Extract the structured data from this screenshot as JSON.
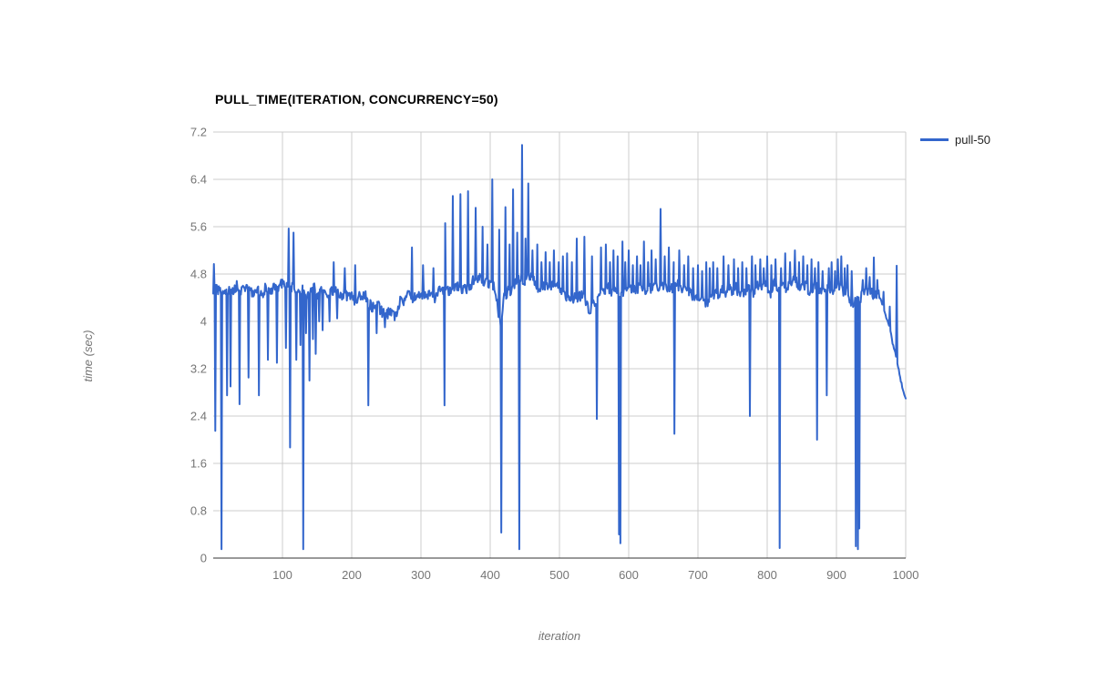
{
  "page": {
    "background": "#FFFFFF"
  },
  "chart_data": {
    "type": "line",
    "title": "PULL_TIME(ITERATION, CONCURRENCY=50)",
    "xlabel": "iteration",
    "ylabel": "time (sec)",
    "xlim": [
      0,
      1000
    ],
    "ylim": [
      0,
      7.2
    ],
    "x_ticks": [
      100,
      200,
      300,
      400,
      500,
      600,
      700,
      800,
      900,
      1000
    ],
    "y_ticks": [
      0,
      0.8,
      1.6,
      2.4,
      3.2,
      4,
      4.8,
      5.6,
      6.4,
      7.2
    ],
    "grid": true,
    "legend_position": "right",
    "colors": {
      "line": "#3366CC",
      "grid": "#CCCCCC",
      "axis": "#333333",
      "tick_text": "#757575",
      "title_text": "#000000",
      "legend_text": "#222222"
    },
    "series": [
      {
        "name": "pull-50",
        "color": "#3366CC",
        "baseline_anchors": [
          [
            0,
            4.55
          ],
          [
            5,
            4.55
          ],
          [
            15,
            4.55
          ],
          [
            30,
            4.52
          ],
          [
            45,
            4.55
          ],
          [
            60,
            4.5
          ],
          [
            75,
            4.55
          ],
          [
            90,
            4.6
          ],
          [
            105,
            4.6
          ],
          [
            118,
            4.55
          ],
          [
            135,
            4.5
          ],
          [
            150,
            4.52
          ],
          [
            165,
            4.45
          ],
          [
            180,
            4.42
          ],
          [
            195,
            4.45
          ],
          [
            210,
            4.4
          ],
          [
            222,
            4.4
          ],
          [
            232,
            4.28
          ],
          [
            242,
            4.2
          ],
          [
            252,
            4.12
          ],
          [
            262,
            4.05
          ],
          [
            270,
            4.3
          ],
          [
            280,
            4.4
          ],
          [
            290,
            4.45
          ],
          [
            300,
            4.5
          ],
          [
            310,
            4.45
          ],
          [
            320,
            4.42
          ],
          [
            330,
            4.55
          ],
          [
            342,
            4.6
          ],
          [
            355,
            4.65
          ],
          [
            365,
            4.6
          ],
          [
            375,
            4.68
          ],
          [
            385,
            4.7
          ],
          [
            395,
            4.62
          ],
          [
            405,
            4.65
          ],
          [
            410,
            4.35
          ],
          [
            415,
            3.95
          ],
          [
            420,
            4.35
          ],
          [
            428,
            4.55
          ],
          [
            438,
            4.65
          ],
          [
            448,
            4.72
          ],
          [
            456,
            4.75
          ],
          [
            464,
            4.7
          ],
          [
            472,
            4.6
          ],
          [
            482,
            4.55
          ],
          [
            492,
            4.6
          ],
          [
            502,
            4.5
          ],
          [
            512,
            4.45
          ],
          [
            522,
            4.42
          ],
          [
            532,
            4.4
          ],
          [
            542,
            4.3
          ],
          [
            550,
            4.25
          ],
          [
            558,
            4.35
          ],
          [
            566,
            4.5
          ],
          [
            576,
            4.55
          ],
          [
            586,
            4.45
          ],
          [
            596,
            4.5
          ],
          [
            606,
            4.55
          ],
          [
            616,
            4.5
          ],
          [
            626,
            4.55
          ],
          [
            636,
            4.6
          ],
          [
            646,
            4.55
          ],
          [
            656,
            4.5
          ],
          [
            666,
            4.55
          ],
          [
            676,
            4.6
          ],
          [
            686,
            4.55
          ],
          [
            696,
            4.4
          ],
          [
            706,
            4.35
          ],
          [
            716,
            4.4
          ],
          [
            726,
            4.45
          ],
          [
            736,
            4.5
          ],
          [
            746,
            4.55
          ],
          [
            756,
            4.5
          ],
          [
            766,
            4.55
          ],
          [
            776,
            4.5
          ],
          [
            786,
            4.55
          ],
          [
            796,
            4.6
          ],
          [
            806,
            4.55
          ],
          [
            816,
            4.6
          ],
          [
            826,
            4.6
          ],
          [
            836,
            4.65
          ],
          [
            846,
            4.6
          ],
          [
            856,
            4.6
          ],
          [
            866,
            4.55
          ],
          [
            876,
            4.6
          ],
          [
            886,
            4.5
          ],
          [
            896,
            4.55
          ],
          [
            906,
            4.6
          ],
          [
            914,
            4.5
          ],
          [
            920,
            4.42
          ],
          [
            925,
            4.35
          ],
          [
            934,
            4.4
          ],
          [
            940,
            4.5
          ],
          [
            948,
            4.55
          ],
          [
            956,
            4.5
          ],
          [
            962,
            4.45
          ],
          [
            966,
            4.3
          ],
          [
            970,
            4.15
          ],
          [
            974,
            4.0
          ],
          [
            978,
            3.85
          ],
          [
            981,
            3.65
          ],
          [
            984,
            3.5
          ],
          [
            987,
            3.38
          ],
          [
            990,
            3.2
          ],
          [
            993,
            3.0
          ],
          [
            996,
            2.85
          ],
          [
            998,
            2.78
          ],
          [
            1000,
            2.73
          ]
        ],
        "spikes": [
          [
            1,
            4.97
          ],
          [
            3,
            2.15
          ],
          [
            12,
            0.15
          ],
          [
            20,
            2.75
          ],
          [
            25,
            2.9
          ],
          [
            38,
            2.6
          ],
          [
            51,
            3.05
          ],
          [
            66,
            2.75
          ],
          [
            79,
            3.35
          ],
          [
            92,
            3.3
          ],
          [
            105,
            3.55
          ],
          [
            109,
            5.57
          ],
          [
            111,
            1.87
          ],
          [
            116,
            5.5
          ],
          [
            120,
            3.35
          ],
          [
            126,
            3.6
          ],
          [
            130,
            0.15
          ],
          [
            134,
            3.8
          ],
          [
            139,
            3.0
          ],
          [
            144,
            3.7
          ],
          [
            148,
            3.45
          ],
          [
            153,
            4.0
          ],
          [
            158,
            3.85
          ],
          [
            168,
            4.0
          ],
          [
            174,
            5.0
          ],
          [
            179,
            4.05
          ],
          [
            190,
            4.9
          ],
          [
            205,
            4.95
          ],
          [
            224,
            2.58
          ],
          [
            236,
            3.8
          ],
          [
            248,
            3.9
          ],
          [
            287,
            5.25
          ],
          [
            303,
            4.95
          ],
          [
            318,
            4.9
          ],
          [
            334,
            2.58
          ],
          [
            335,
            5.66
          ],
          [
            346,
            6.12
          ],
          [
            357,
            6.15
          ],
          [
            368,
            6.2
          ],
          [
            379,
            5.92
          ],
          [
            389,
            5.6
          ],
          [
            396,
            5.3
          ],
          [
            403,
            6.4
          ],
          [
            413,
            5.55
          ],
          [
            416,
            0.43
          ],
          [
            422,
            5.93
          ],
          [
            428,
            5.3
          ],
          [
            433,
            6.23
          ],
          [
            439,
            5.5
          ],
          [
            442,
            0.15
          ],
          [
            446,
            6.98
          ],
          [
            451,
            5.4
          ],
          [
            455,
            6.33
          ],
          [
            461,
            5.2
          ],
          [
            468,
            5.3
          ],
          [
            474,
            5.0
          ],
          [
            480,
            5.17
          ],
          [
            486,
            5.0
          ],
          [
            492,
            5.2
          ],
          [
            499,
            5.0
          ],
          [
            505,
            5.1
          ],
          [
            511,
            5.15
          ],
          [
            518,
            5.0
          ],
          [
            525,
            5.4
          ],
          [
            536,
            5.43
          ],
          [
            547,
            5.1
          ],
          [
            554,
            2.35
          ],
          [
            560,
            5.25
          ],
          [
            567,
            5.3
          ],
          [
            573,
            5.0
          ],
          [
            578,
            5.2
          ],
          [
            584,
            5.1
          ],
          [
            586,
            0.4
          ],
          [
            588,
            0.25
          ],
          [
            591,
            5.35
          ],
          [
            595,
            5.0
          ],
          [
            600,
            5.2
          ],
          [
            606,
            4.95
          ],
          [
            612,
            5.1
          ],
          [
            617,
            4.95
          ],
          [
            622,
            5.35
          ],
          [
            628,
            5.0
          ],
          [
            633,
            5.2
          ],
          [
            639,
            5.05
          ],
          [
            646,
            5.9
          ],
          [
            652,
            5.1
          ],
          [
            658,
            5.25
          ],
          [
            665,
            5.0
          ],
          [
            666,
            2.1
          ],
          [
            673,
            5.2
          ],
          [
            680,
            4.95
          ],
          [
            686,
            5.1
          ],
          [
            693,
            4.9
          ],
          [
            700,
            4.95
          ],
          [
            706,
            4.85
          ],
          [
            712,
            5.0
          ],
          [
            717,
            4.9
          ],
          [
            722,
            5.0
          ],
          [
            728,
            4.9
          ],
          [
            737,
            5.1
          ],
          [
            744,
            4.95
          ],
          [
            752,
            5.05
          ],
          [
            758,
            4.9
          ],
          [
            764,
            5.0
          ],
          [
            770,
            4.9
          ],
          [
            775,
            2.4
          ],
          [
            778,
            5.1
          ],
          [
            783,
            4.95
          ],
          [
            790,
            5.05
          ],
          [
            795,
            4.9
          ],
          [
            800,
            5.1
          ],
          [
            806,
            4.95
          ],
          [
            812,
            5.05
          ],
          [
            818,
            0.17
          ],
          [
            820,
            4.9
          ],
          [
            826,
            5.15
          ],
          [
            833,
            5.0
          ],
          [
            840,
            5.2
          ],
          [
            846,
            5.0
          ],
          [
            852,
            5.1
          ],
          [
            858,
            4.95
          ],
          [
            864,
            5.05
          ],
          [
            869,
            4.9
          ],
          [
            872,
            2.0
          ],
          [
            874,
            5.0
          ],
          [
            880,
            4.85
          ],
          [
            886,
            2.75
          ],
          [
            889,
            4.9
          ],
          [
            893,
            5.0
          ],
          [
            898,
            4.85
          ],
          [
            902,
            5.05
          ],
          [
            907,
            5.1
          ],
          [
            912,
            4.9
          ],
          [
            916,
            4.95
          ],
          [
            922,
            4.85
          ],
          [
            928,
            0.2
          ],
          [
            931,
            0.15
          ],
          [
            933,
            0.5
          ],
          [
            938,
            4.7
          ],
          [
            943,
            4.9
          ],
          [
            948,
            4.75
          ],
          [
            954,
            5.08
          ],
          [
            959,
            4.7
          ],
          [
            968,
            4.5
          ],
          [
            977,
            4.25
          ],
          [
            987,
            4.94
          ]
        ],
        "noise": {
          "amplitude": 0.17,
          "seed": 7,
          "tail_smooth_from": 963
        }
      }
    ]
  }
}
